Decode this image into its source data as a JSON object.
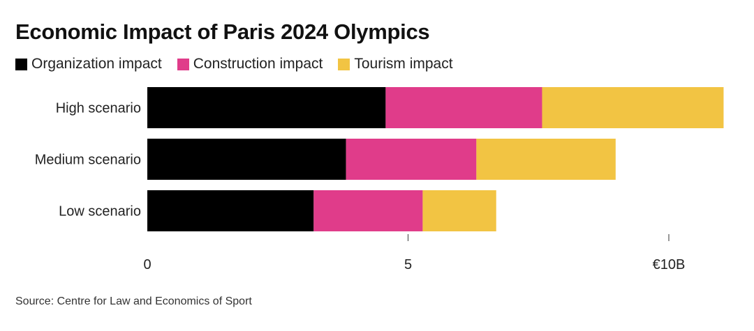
{
  "title": "Economic Impact of Paris 2024 Olympics",
  "source": "Source: Centre for Law and Economics of Sport",
  "colors": {
    "organization": "#000000",
    "construction": "#e03c8a",
    "tourism": "#f2c443"
  },
  "chart_data": {
    "type": "bar",
    "orientation": "horizontal",
    "stacked": true,
    "categories": [
      "High scenario",
      "Medium scenario",
      "Low scenario"
    ],
    "series": [
      {
        "name": "Organization impact",
        "color": "#000000",
        "values": [
          4.57,
          3.81,
          3.19
        ]
      },
      {
        "name": "Construction impact",
        "color": "#e03c8a",
        "values": [
          3.0,
          2.5,
          2.09
        ]
      },
      {
        "name": "Tourism impact",
        "color": "#f2c443",
        "values": [
          3.48,
          2.67,
          1.41
        ]
      }
    ],
    "xlim": [
      0,
      11.2
    ],
    "xticks": [
      0,
      5,
      10
    ],
    "xtick_labels": [
      "0",
      "5",
      "€10B"
    ],
    "legend_position": "top-left",
    "grid": false
  }
}
